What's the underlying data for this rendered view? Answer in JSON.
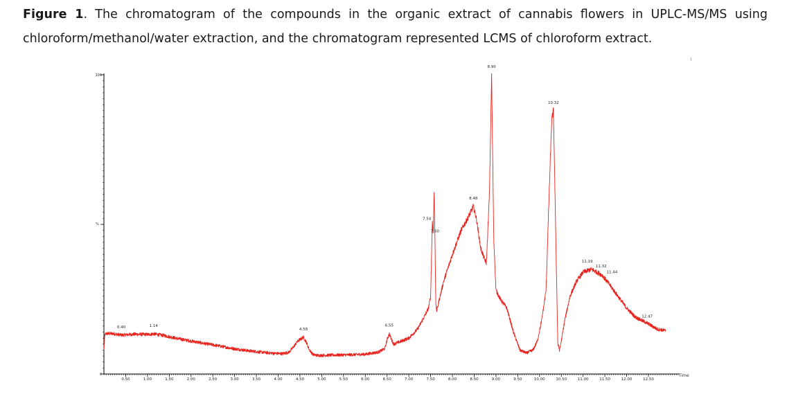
{
  "caption": {
    "label": "Figure 1",
    "text": ". The chromatogram of the compounds in the organic extract of cannabis flowers in UPLC-MS/MS using chloroform/methanol/water extraction, and the chromatogram represented LCMS of chloroform extract."
  },
  "chart_data": {
    "type": "line",
    "title": "",
    "xlabel": "Time",
    "ylabel": "%",
    "xlim": [
      0,
      13.2
    ],
    "ylim": [
      0,
      100
    ],
    "x_ticks": [
      "0.50",
      "1.00",
      "1.50",
      "2.00",
      "2.50",
      "3.00",
      "3.50",
      "4.00",
      "4.50",
      "5.00",
      "5.50",
      "6.00",
      "6.50",
      "7.00",
      "7.50",
      "8.00",
      "8.50",
      "9.00",
      "9.50",
      "10.00",
      "10.50",
      "11.00",
      "11.50",
      "12.00",
      "12.50"
    ],
    "y_ticks": [
      "0",
      "100"
    ],
    "line_color": "#e8231d",
    "series": [
      {
        "x": [
          0.0,
          0.02,
          0.05,
          0.2,
          0.4,
          0.7,
          1.0,
          1.14,
          1.4,
          1.7,
          2.0,
          2.3,
          2.6,
          3.0,
          3.3,
          3.6,
          3.9,
          4.1,
          4.25,
          4.35,
          4.45,
          4.58,
          4.65,
          4.72,
          4.8,
          4.9,
          5.2,
          5.6,
          6.0,
          6.3,
          6.45,
          6.5,
          6.55,
          6.6,
          6.65,
          6.8,
          7.0,
          7.2,
          7.35,
          7.45,
          7.5,
          7.54,
          7.56,
          7.58,
          7.6,
          7.62,
          7.64,
          7.7,
          7.8,
          8.0,
          8.2,
          8.35,
          8.45,
          8.48,
          8.55,
          8.65,
          8.72,
          8.78,
          8.85,
          8.9,
          8.95,
          9.0,
          9.1,
          9.25,
          9.4,
          9.55,
          9.7,
          9.85,
          9.95,
          10.05,
          10.15,
          10.22,
          10.28,
          10.32,
          10.36,
          10.42,
          10.46,
          10.5,
          10.58,
          10.7,
          10.85,
          11.0,
          11.19,
          11.32,
          11.44,
          11.6,
          11.8,
          12.0,
          12.2,
          12.47,
          12.7,
          12.9
        ],
        "y": [
          8,
          13,
          13.5,
          13.5,
          13,
          13.3,
          13.2,
          13.4,
          12.8,
          11.8,
          11,
          10.2,
          9.5,
          8.4,
          7.8,
          7.3,
          6.9,
          6.8,
          7.3,
          9,
          11,
          12.3,
          10.5,
          8,
          6.5,
          6.2,
          6.3,
          6.4,
          6.6,
          7.3,
          8.5,
          11.5,
          13.5,
          11.5,
          10,
          10.8,
          12,
          15,
          19,
          22,
          26,
          51,
          47,
          61,
          45,
          23,
          21,
          25,
          31,
          40,
          48,
          52,
          55,
          56,
          52,
          42,
          39,
          37,
          60,
          100,
          45,
          28,
          25,
          22,
          14,
          8,
          7,
          8,
          11,
          18,
          28,
          60,
          85,
          88,
          56,
          10,
          8,
          11,
          18,
          26,
          31,
          34,
          35,
          34,
          33,
          30,
          26,
          22,
          19,
          17,
          15,
          14.5
        ]
      }
    ],
    "peak_labels": [
      {
        "x": 0.4,
        "text": "0.40"
      },
      {
        "x": 1.14,
        "text": "1.14"
      },
      {
        "x": 4.58,
        "text": "4.58"
      },
      {
        "x": 6.55,
        "text": "6.55"
      },
      {
        "x": 7.54,
        "text": "7.54"
      },
      {
        "x": 7.6,
        "text": "7.60"
      },
      {
        "x": 8.48,
        "text": "8.48"
      },
      {
        "x": 8.9,
        "text": "8.90"
      },
      {
        "x": 10.32,
        "text": "10.32"
      },
      {
        "x": 11.19,
        "text": "11.19"
      },
      {
        "x": 11.32,
        "text": "11.32"
      },
      {
        "x": 11.44,
        "text": "11.44"
      },
      {
        "x": 12.47,
        "text": "12.47"
      }
    ],
    "grid": false
  }
}
